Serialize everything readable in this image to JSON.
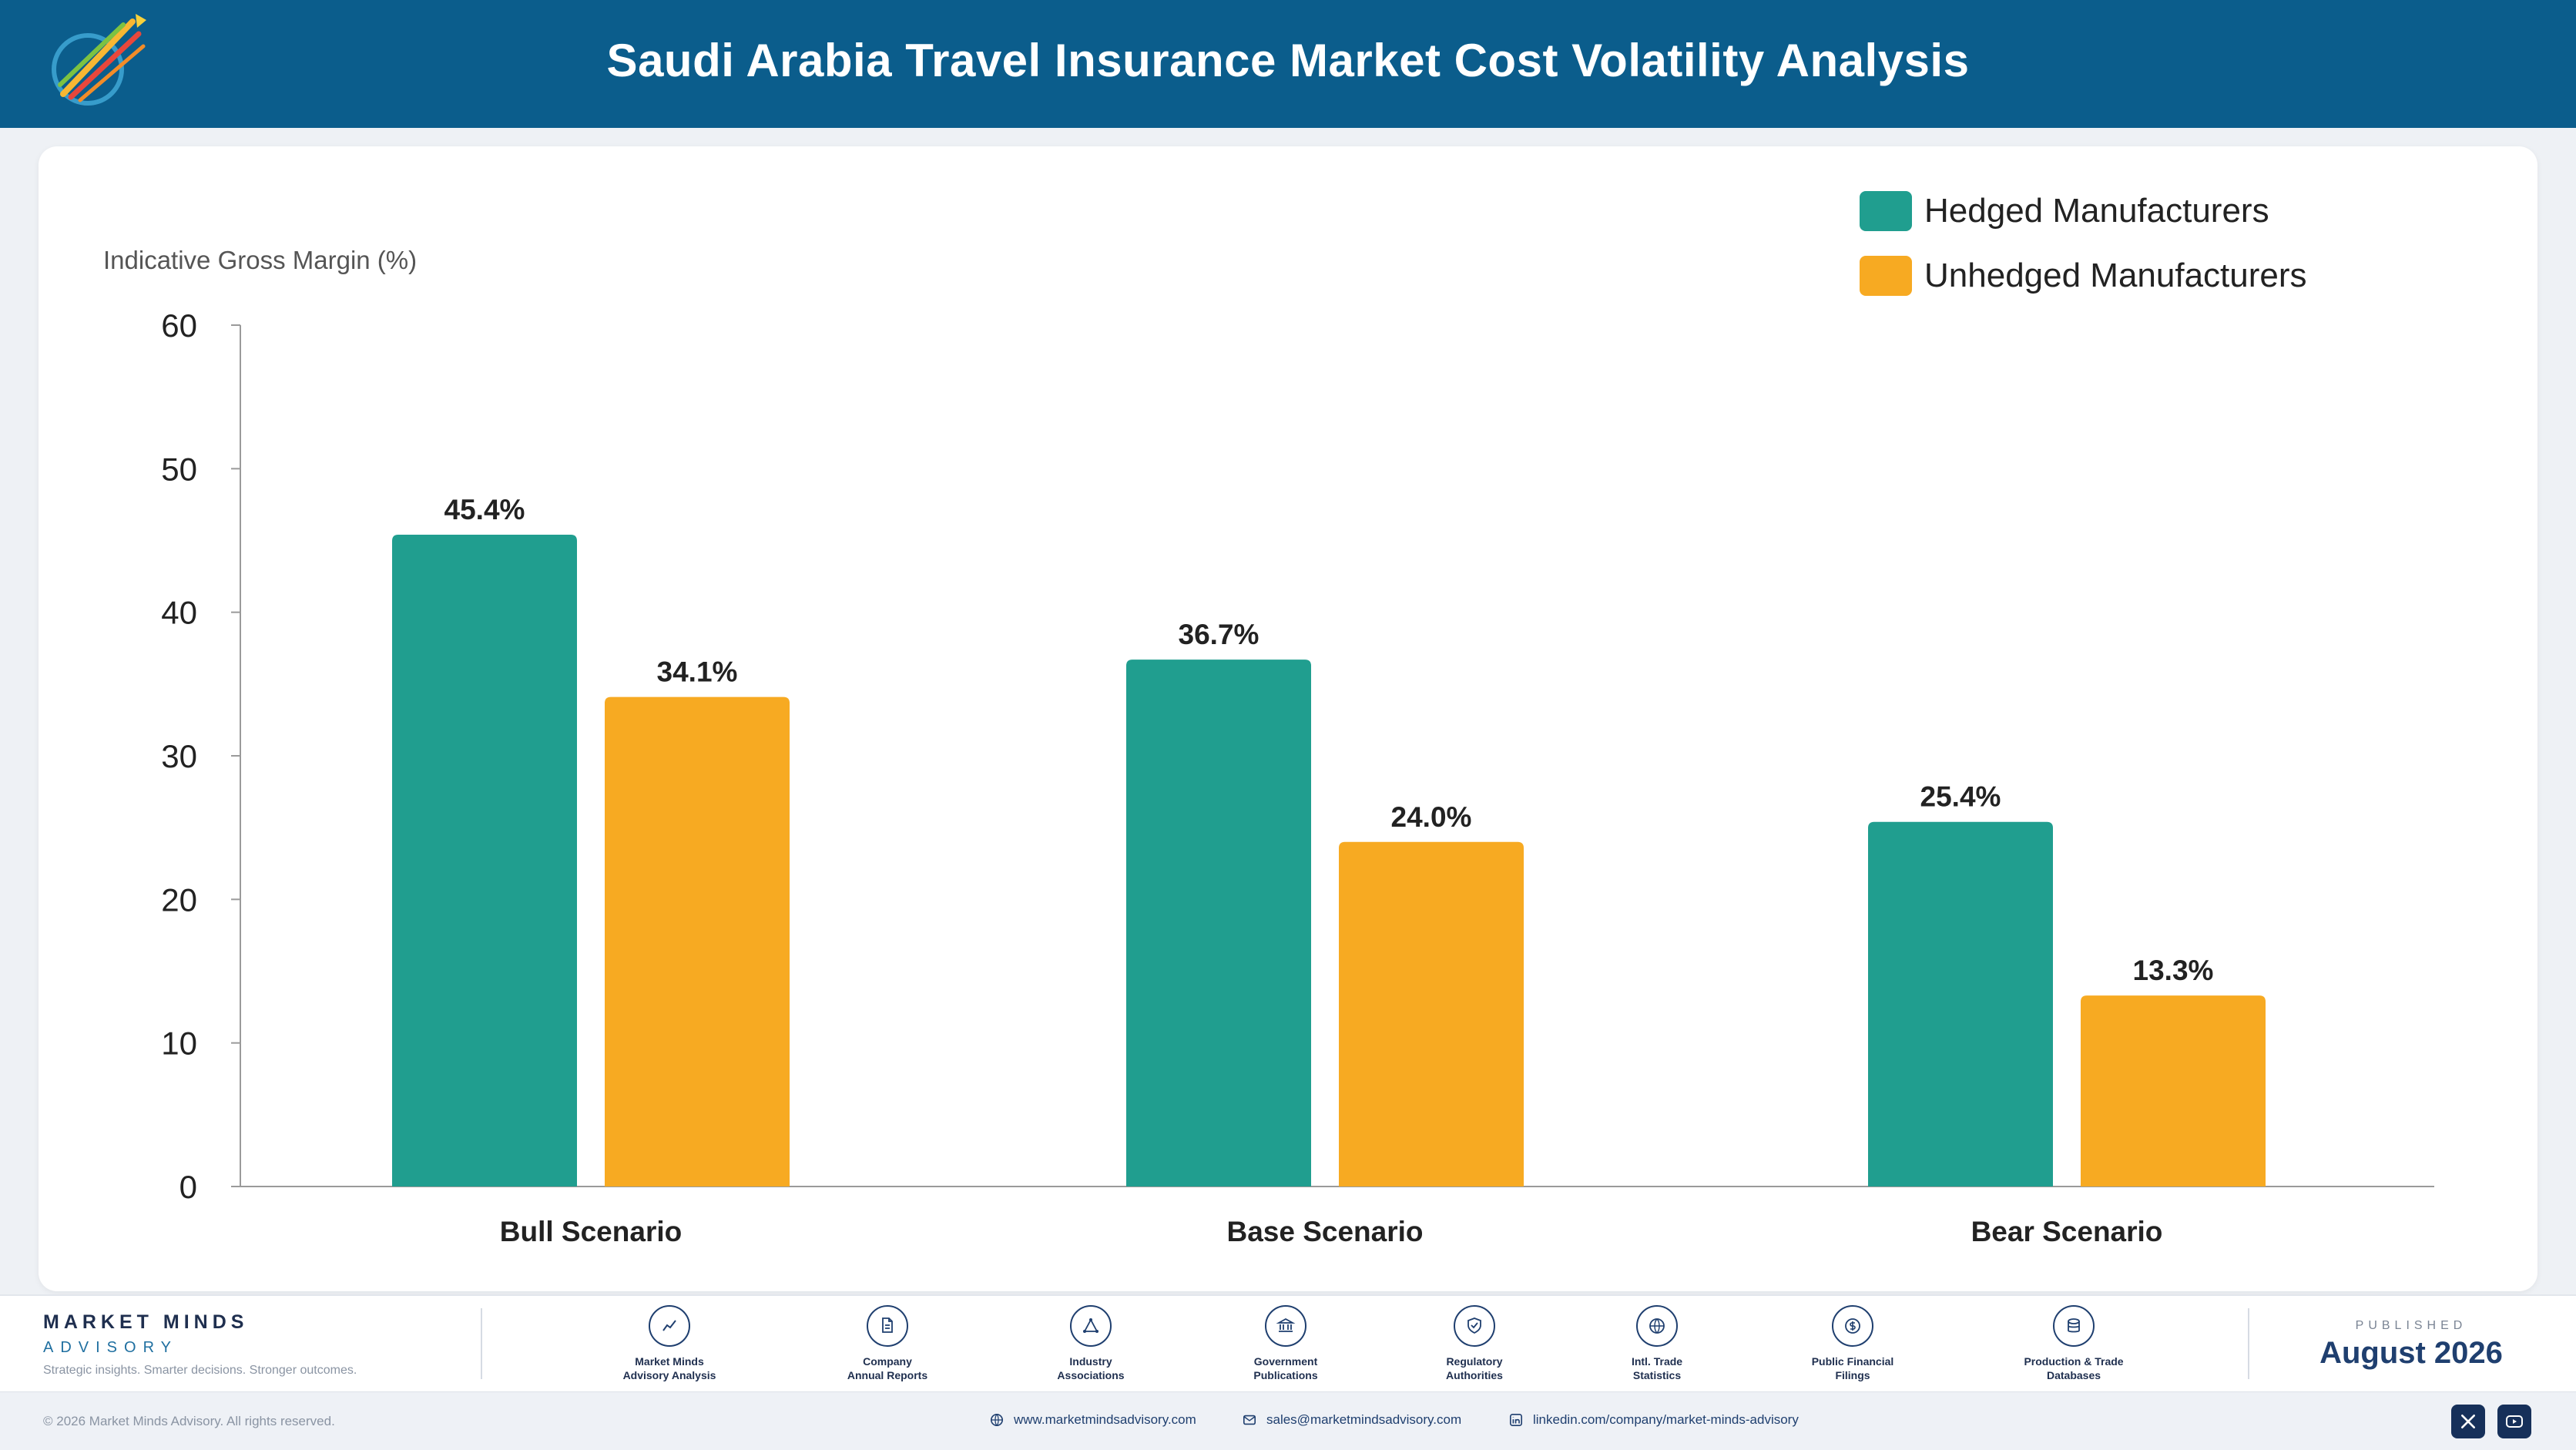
{
  "header": {
    "title": "Saudi Arabia Travel Insurance Market Cost Volatility Analysis"
  },
  "chart_data": {
    "type": "bar",
    "title": "Saudi Arabia Travel Insurance Market Cost Volatility Analysis",
    "ylabel": "Indicative Gross Margin (%)",
    "xlabel": "",
    "ylim": [
      0,
      60
    ],
    "yticks": [
      0,
      10,
      20,
      30,
      40,
      50,
      60
    ],
    "grid": false,
    "legend_position": "top-right",
    "categories": [
      "Bull Scenario",
      "Base Scenario",
      "Bear Scenario"
    ],
    "series": [
      {
        "name": "Hedged Manufacturers",
        "color": "#209e8f",
        "values": [
          45.4,
          36.7,
          25.4
        ],
        "labels": [
          "45.4%",
          "36.7%",
          "25.4%"
        ]
      },
      {
        "name": "Unhedged Manufacturers",
        "color": "#f7aa22",
        "values": [
          34.1,
          24.0,
          13.3
        ],
        "labels": [
          "34.1%",
          "24.0%",
          "13.3%"
        ]
      }
    ]
  },
  "footer": {
    "brand_name": "MARKET MINDS",
    "brand_sub": "ADVISORY",
    "brand_tagline": "Strategic insights. Smarter decisions. Stronger outcomes.",
    "sources": [
      {
        "label": "Market Minds\nAdvisory Analysis",
        "icon": "trend-line-icon"
      },
      {
        "label": "Company\nAnnual Reports",
        "icon": "document-icon"
      },
      {
        "label": "Industry\nAssociations",
        "icon": "network-icon"
      },
      {
        "label": "Government\nPublications",
        "icon": "government-building-icon"
      },
      {
        "label": "Regulatory\nAuthorities",
        "icon": "shield-check-icon"
      },
      {
        "label": "Intl. Trade\nStatistics",
        "icon": "globe-icon"
      },
      {
        "label": "Public Financial\nFilings",
        "icon": "dollar-coin-icon"
      },
      {
        "label": "Production & Trade\nDatabases",
        "icon": "database-icon"
      }
    ],
    "published_label": "PUBLISHED",
    "published_date": "August 2026",
    "copyright": "© 2026 Market Minds Advisory. All rights reserved.",
    "website": "www.marketmindsadvisory.com",
    "email": "sales@marketmindsadvisory.com",
    "linkedin": "linkedin.com/company/market-minds-advisory"
  }
}
